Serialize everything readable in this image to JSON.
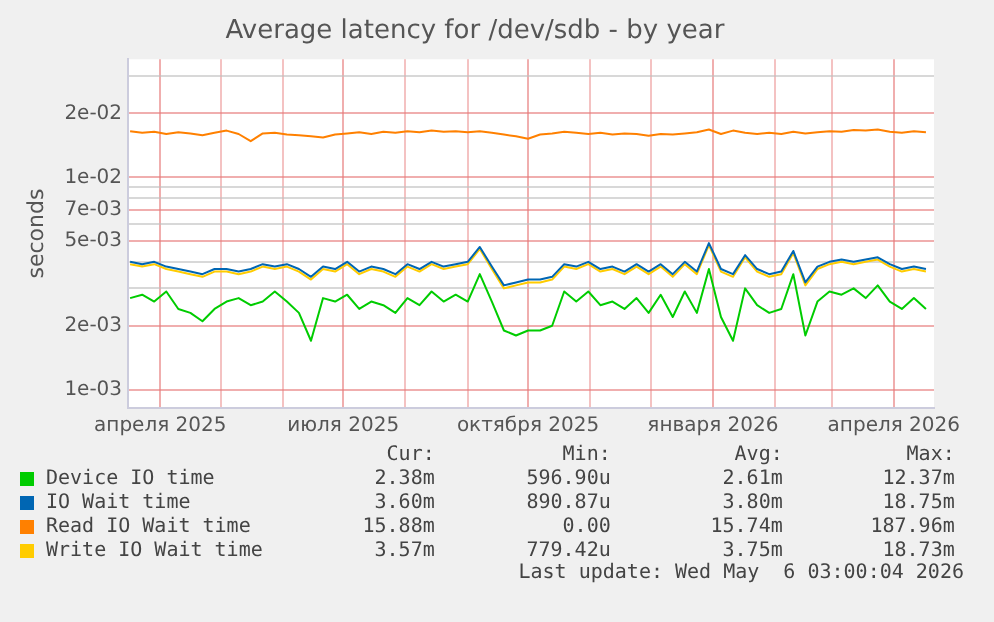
{
  "chart_data": {
    "type": "line",
    "title": "Average latency for /dev/sdb - by year",
    "ylabel": "seconds",
    "log": "y",
    "grid": true,
    "legend": "bottom",
    "marker": "none",
    "line_style": "solid",
    "x": [
      "2025-03-17",
      "2025-03-23",
      "2025-03-29",
      "2025-04-04",
      "2025-04-10",
      "2025-04-16",
      "2025-04-22",
      "2025-04-28",
      "2025-05-04",
      "2025-05-10",
      "2025-05-16",
      "2025-05-22",
      "2025-05-28",
      "2025-06-03",
      "2025-06-09",
      "2025-06-15",
      "2025-06-21",
      "2025-06-27",
      "2025-07-03",
      "2025-07-09",
      "2025-07-15",
      "2025-07-21",
      "2025-07-27",
      "2025-08-02",
      "2025-08-08",
      "2025-08-14",
      "2025-08-20",
      "2025-08-26",
      "2025-09-01",
      "2025-09-07",
      "2025-09-13",
      "2025-09-19",
      "2025-09-25",
      "2025-10-01",
      "2025-10-07",
      "2025-10-13",
      "2025-10-19",
      "2025-10-25",
      "2025-10-31",
      "2025-11-06",
      "2025-11-12",
      "2025-11-18",
      "2025-11-24",
      "2025-11-30",
      "2025-12-06",
      "2025-12-12",
      "2025-12-18",
      "2025-12-24",
      "2025-12-30",
      "2026-01-05",
      "2026-01-11",
      "2026-01-17",
      "2026-01-23",
      "2026-01-29",
      "2026-02-04",
      "2026-02-10",
      "2026-02-16",
      "2026-02-22",
      "2026-02-28",
      "2026-03-06",
      "2026-03-12",
      "2026-03-18",
      "2026-03-24",
      "2026-03-30",
      "2026-04-05",
      "2026-04-11",
      "2026-04-17"
    ],
    "xlim": [
      "2025-03-16",
      "2026-04-21"
    ],
    "xticks": [
      {
        "value": "2025-04-01",
        "label": "апреля 2025"
      },
      {
        "value": "2025-05-01",
        "label": null
      },
      {
        "value": "2025-06-01",
        "label": null
      },
      {
        "value": "2025-07-01",
        "label": "июля 2025"
      },
      {
        "value": "2025-08-01",
        "label": null
      },
      {
        "value": "2025-09-01",
        "label": null
      },
      {
        "value": "2025-10-01",
        "label": "октября 2025"
      },
      {
        "value": "2025-11-01",
        "label": null
      },
      {
        "value": "2025-12-01",
        "label": null
      },
      {
        "value": "2026-01-01",
        "label": "января 2026"
      },
      {
        "value": "2026-02-01",
        "label": null
      },
      {
        "value": "2026-03-01",
        "label": null
      },
      {
        "value": "2026-04-01",
        "label": "апреля 2026"
      }
    ],
    "ylim": [
      0.00082,
      0.036
    ],
    "yticks": [
      {
        "value": 0.001,
        "label": "1e-03"
      },
      {
        "value": 0.002,
        "label": "2e-03"
      },
      {
        "value": 0.003,
        "label": null
      },
      {
        "value": 0.004,
        "label": null
      },
      {
        "value": 0.005,
        "label": "5e-03"
      },
      {
        "value": 0.006,
        "label": null
      },
      {
        "value": 0.007,
        "label": "7e-03"
      },
      {
        "value": 0.008,
        "label": null
      },
      {
        "value": 0.009,
        "label": null
      },
      {
        "value": 0.01,
        "label": "1e-02"
      },
      {
        "value": 0.02,
        "label": "2e-02"
      },
      {
        "value": 0.03,
        "label": null
      }
    ],
    "series": [
      {
        "name": "Device IO time",
        "color": "#00cc00",
        "values": [
          0.0027,
          0.0028,
          0.0026,
          0.0029,
          0.0024,
          0.0023,
          0.0021,
          0.0024,
          0.0026,
          0.0027,
          0.0025,
          0.0026,
          0.0029,
          0.0026,
          0.0023,
          0.0017,
          0.0027,
          0.0026,
          0.0028,
          0.0024,
          0.0026,
          0.0025,
          0.0023,
          0.0027,
          0.0025,
          0.0029,
          0.0026,
          0.0028,
          0.0026,
          0.0035,
          0.0026,
          0.0019,
          0.0018,
          0.0019,
          0.0019,
          0.002,
          0.0029,
          0.0026,
          0.0029,
          0.0025,
          0.0026,
          0.0024,
          0.0027,
          0.0023,
          0.0028,
          0.0022,
          0.0029,
          0.0023,
          0.0037,
          0.0022,
          0.0017,
          0.003,
          0.0025,
          0.0023,
          0.0024,
          0.0035,
          0.0018,
          0.0026,
          0.0029,
          0.0028,
          0.003,
          0.0027,
          0.0031,
          0.0026,
          0.0024,
          0.0027,
          0.0024
        ]
      },
      {
        "name": "IO Wait time",
        "color": "#0066b3",
        "values": [
          0.004,
          0.0039,
          0.004,
          0.0038,
          0.0037,
          0.0036,
          0.0035,
          0.0037,
          0.0037,
          0.0036,
          0.0037,
          0.0039,
          0.0038,
          0.0039,
          0.0037,
          0.0034,
          0.0038,
          0.0037,
          0.004,
          0.0036,
          0.0038,
          0.0037,
          0.0035,
          0.0039,
          0.0037,
          0.004,
          0.0038,
          0.0039,
          0.004,
          0.0047,
          0.0038,
          0.0031,
          0.0032,
          0.0033,
          0.0033,
          0.0034,
          0.0039,
          0.0038,
          0.004,
          0.0037,
          0.0038,
          0.0036,
          0.0039,
          0.0036,
          0.0039,
          0.0035,
          0.004,
          0.0036,
          0.0049,
          0.0037,
          0.0035,
          0.0043,
          0.0037,
          0.0035,
          0.0036,
          0.0045,
          0.0032,
          0.0038,
          0.004,
          0.0041,
          0.004,
          0.0041,
          0.0042,
          0.0039,
          0.0037,
          0.0038,
          0.0037
        ]
      },
      {
        "name": "Read IO Wait time",
        "color": "#ff8000",
        "values": [
          0.0165,
          0.0162,
          0.0164,
          0.016,
          0.0163,
          0.0161,
          0.0158,
          0.0162,
          0.0166,
          0.016,
          0.0148,
          0.0161,
          0.0162,
          0.0159,
          0.0158,
          0.0156,
          0.0154,
          0.0159,
          0.0161,
          0.0163,
          0.016,
          0.0164,
          0.0162,
          0.0165,
          0.0163,
          0.0166,
          0.0164,
          0.0165,
          0.0163,
          0.0165,
          0.0162,
          0.0159,
          0.0156,
          0.0152,
          0.0159,
          0.0161,
          0.0164,
          0.0162,
          0.016,
          0.0162,
          0.0159,
          0.0161,
          0.016,
          0.0157,
          0.016,
          0.0159,
          0.0161,
          0.0163,
          0.0168,
          0.016,
          0.0166,
          0.0162,
          0.016,
          0.0162,
          0.016,
          0.0164,
          0.0161,
          0.0163,
          0.0165,
          0.0164,
          0.0167,
          0.0166,
          0.0168,
          0.0164,
          0.0162,
          0.0165,
          0.0163
        ]
      },
      {
        "name": "Write IO Wait time",
        "color": "#ffcc00",
        "values": [
          0.0039,
          0.0038,
          0.0039,
          0.0037,
          0.0036,
          0.0035,
          0.0034,
          0.0036,
          0.0036,
          0.0035,
          0.0036,
          0.0038,
          0.0037,
          0.0038,
          0.0036,
          0.0033,
          0.0037,
          0.0036,
          0.0039,
          0.0035,
          0.0037,
          0.0036,
          0.0034,
          0.0038,
          0.0036,
          0.0039,
          0.0037,
          0.0038,
          0.0039,
          0.0046,
          0.0037,
          0.003,
          0.0031,
          0.0032,
          0.0032,
          0.0033,
          0.0038,
          0.0037,
          0.0039,
          0.0036,
          0.0037,
          0.0035,
          0.0038,
          0.0035,
          0.0038,
          0.0034,
          0.0039,
          0.0035,
          0.0048,
          0.0036,
          0.0034,
          0.0042,
          0.0036,
          0.0034,
          0.0035,
          0.0044,
          0.0031,
          0.0037,
          0.0039,
          0.004,
          0.0039,
          0.004,
          0.0041,
          0.0038,
          0.0036,
          0.0037,
          0.0036
        ]
      }
    ],
    "annotations": [
      "Cur:",
      "Min:",
      "Avg:",
      "Max:",
      "2.38m",
      "596.90u",
      "2.61m",
      "12.37m",
      "3.60m",
      "890.87u",
      "3.80m",
      "18.75m",
      "15.88m",
      "0.00",
      "15.74m",
      "187.96m",
      "3.57m",
      "779.42u",
      "3.75m",
      "18.73m",
      "Last update: Wed May  6 03:00:04 2026"
    ]
  }
}
